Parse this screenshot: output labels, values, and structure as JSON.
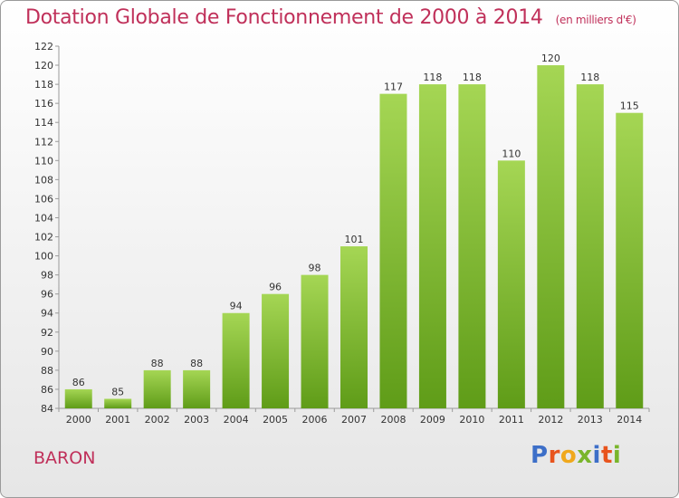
{
  "header": {
    "title": "Dotation Globale de Fonctionnement de 2000 à 2014",
    "subtitle": "(en milliers d'€)"
  },
  "footer": {
    "place": "BARON",
    "logo": "Proxiti"
  },
  "colors": {
    "title": "#c0305a",
    "bar_top": "#a5d654",
    "bar_bottom": "#5f9c18",
    "logo": [
      "#3d6fc8",
      "#e8541d",
      "#f0a81c",
      "#79b52b",
      "#3d6fc8",
      "#e8541d",
      "#79b52b"
    ]
  },
  "chart_data": {
    "type": "bar",
    "categories": [
      "2000",
      "2001",
      "2002",
      "2003",
      "2004",
      "2005",
      "2006",
      "2007",
      "2008",
      "2009",
      "2010",
      "2011",
      "2012",
      "2013",
      "2014"
    ],
    "values": [
      86,
      85,
      88,
      88,
      94,
      96,
      98,
      101,
      117,
      118,
      118,
      110,
      120,
      118,
      115
    ],
    "ylim": [
      84,
      122
    ],
    "yticks": [
      84,
      86,
      88,
      90,
      92,
      94,
      96,
      98,
      100,
      102,
      104,
      106,
      108,
      110,
      112,
      114,
      116,
      118,
      120,
      122
    ],
    "grid": false
  }
}
